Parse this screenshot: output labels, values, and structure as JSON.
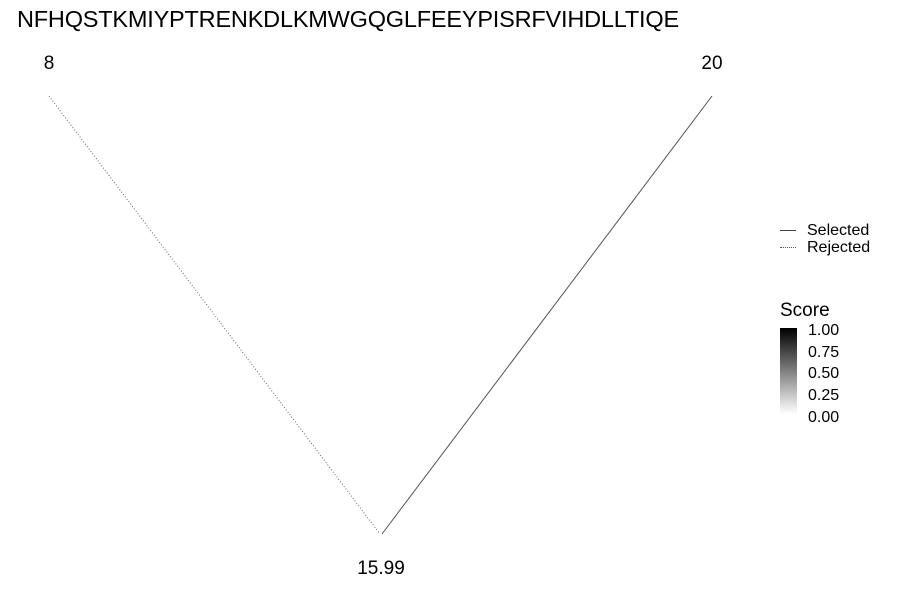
{
  "title": "NFHQSTKMIYPTRENKDLKMWGQGLFEEYPISRFVIHDLLTIQE",
  "nodes": {
    "left": "8",
    "right": "20",
    "bottom": "15.99"
  },
  "edges": [
    {
      "from": "8",
      "to": "15.99",
      "status": "Rejected"
    },
    {
      "from": "20",
      "to": "15.99",
      "status": "Selected"
    }
  ],
  "legend": {
    "selected": "Selected",
    "rejected": "Rejected"
  },
  "score_legend": {
    "title": "Score",
    "ticks": [
      "1.00",
      "0.75",
      "0.50",
      "0.25",
      "0.00"
    ],
    "range": [
      0,
      1
    ],
    "colors": {
      "high": "#000000",
      "low": "#ffffff"
    }
  }
}
